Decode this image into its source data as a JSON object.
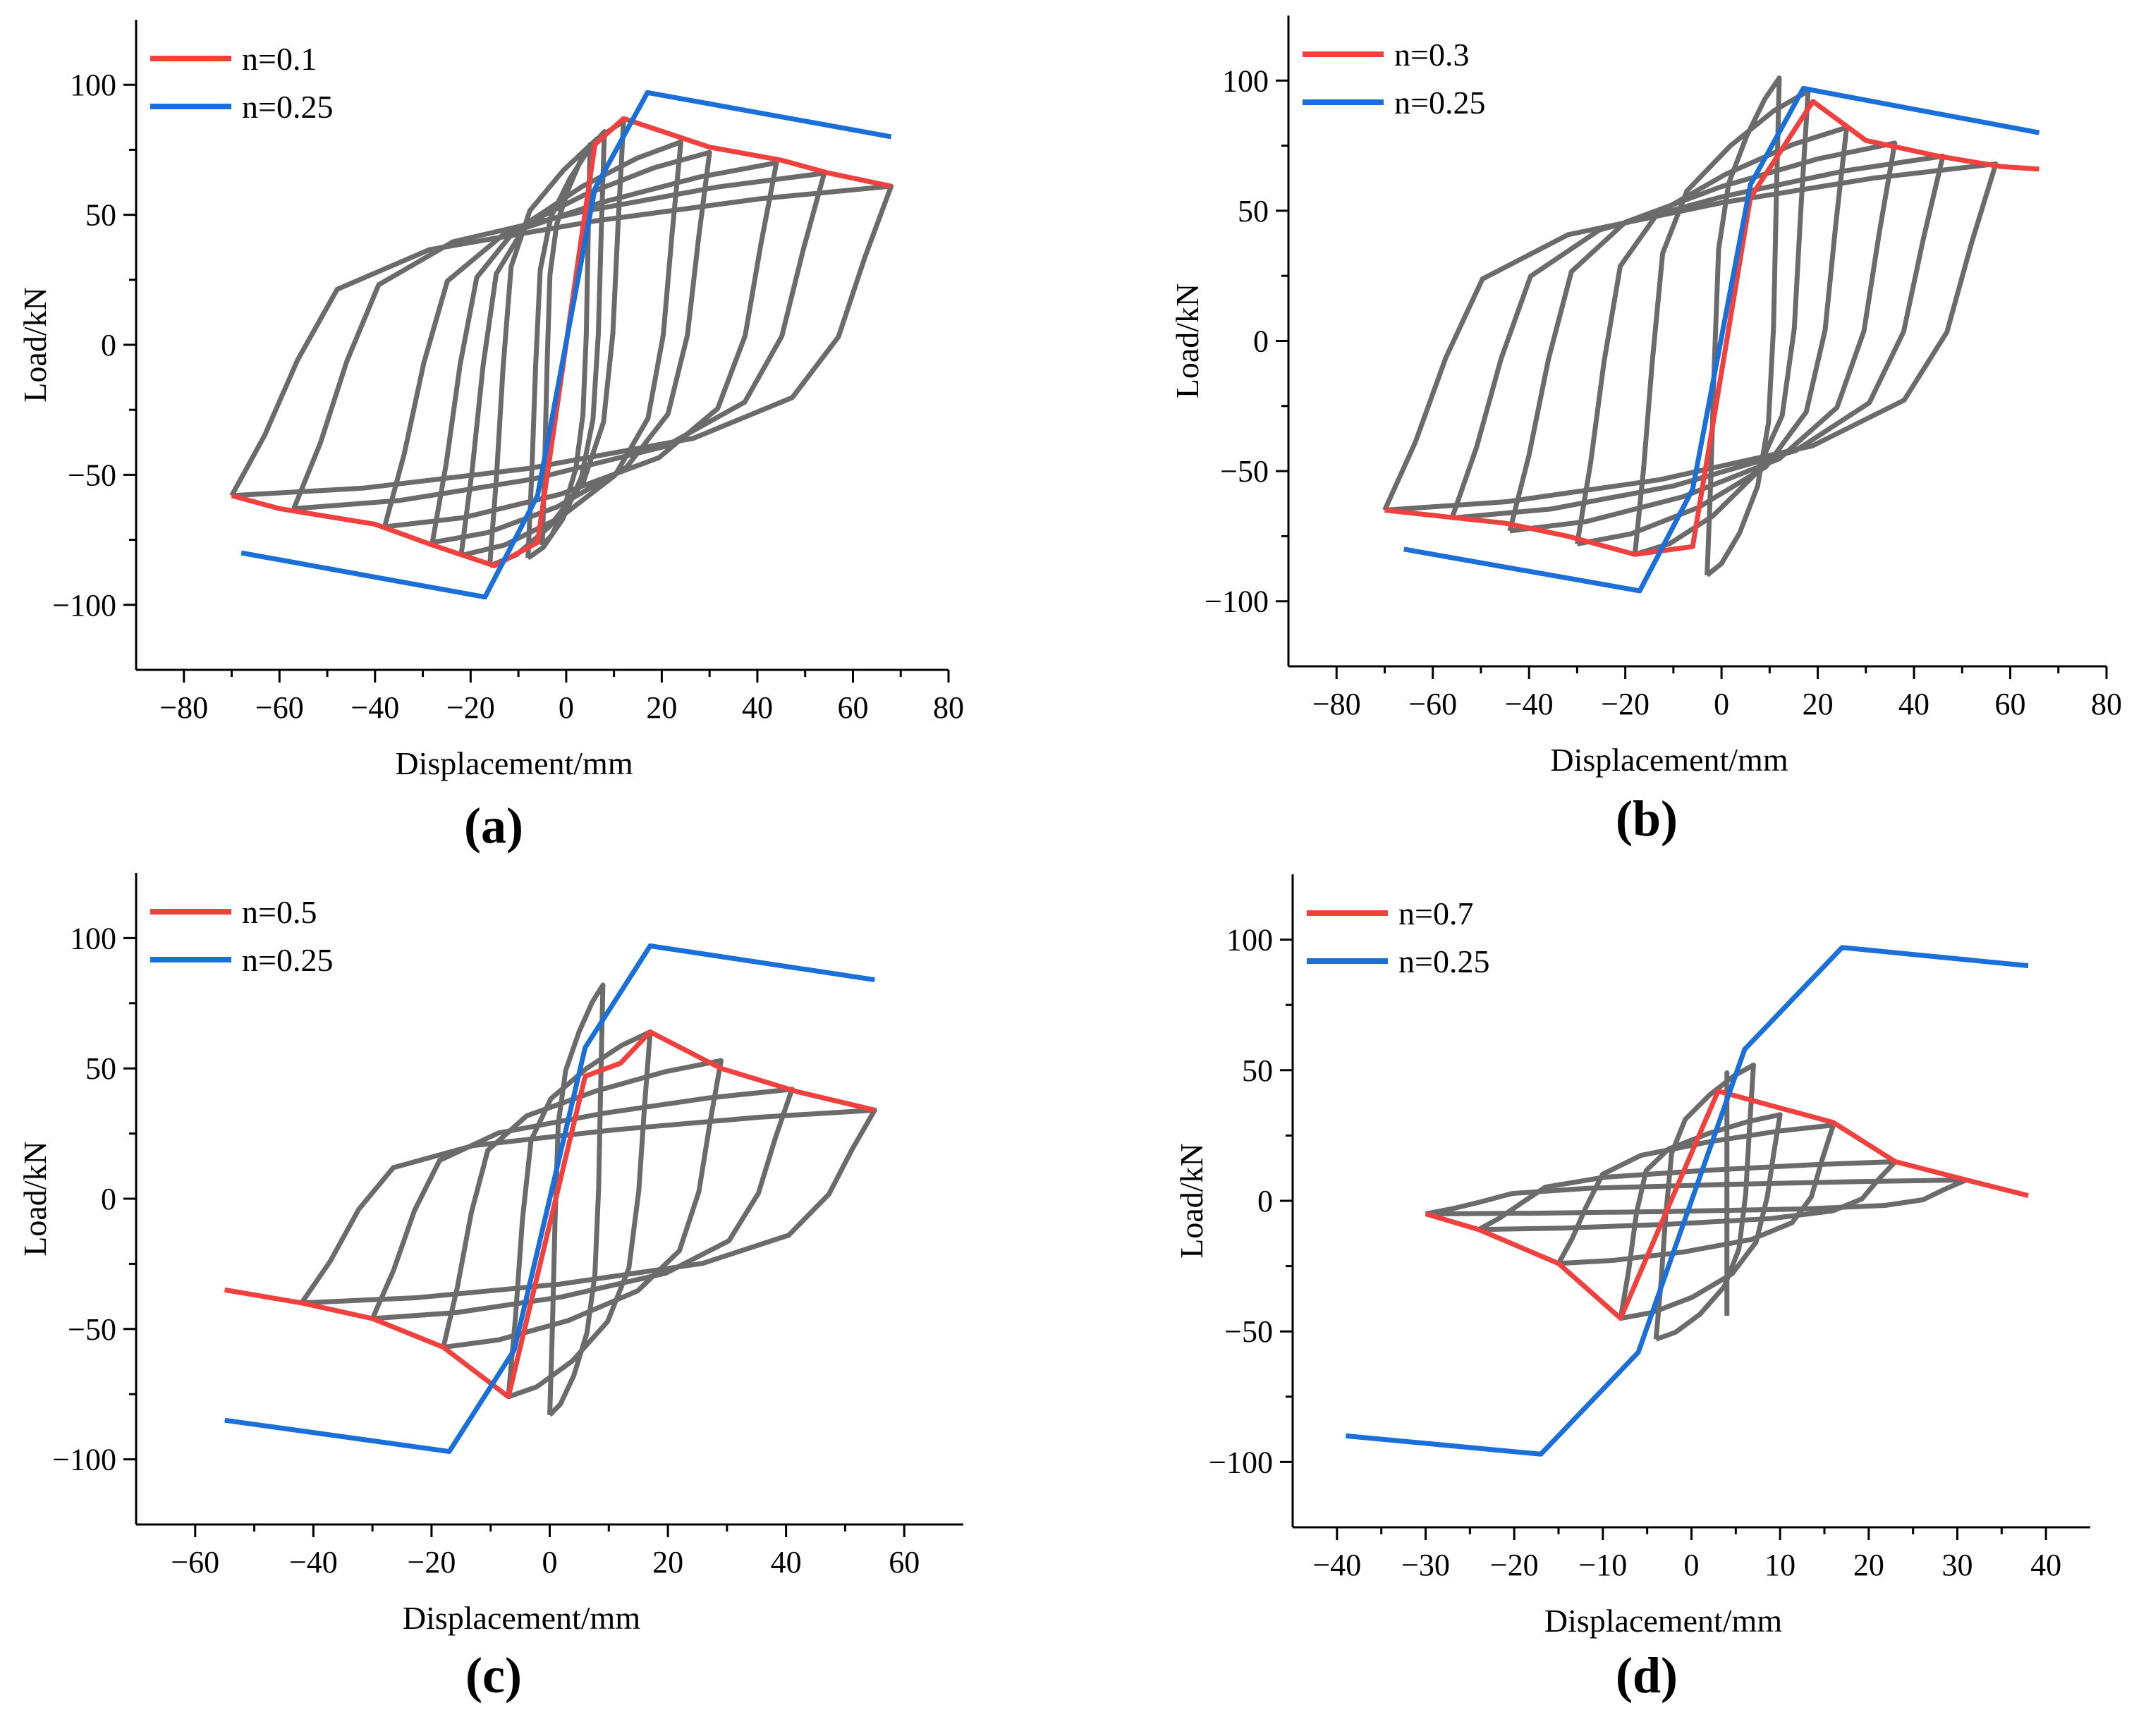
{
  "figure": {
    "colors": {
      "gray": "#6b6b6b",
      "red": "#f0413f",
      "blue": "#1a6fd8"
    },
    "panels": [
      "(a)",
      "(b)",
      "(c)",
      "(d)"
    ]
  },
  "chart_data": [
    {
      "id": "a",
      "panel_label": "(a)",
      "type": "line",
      "xlabel": "Displacement/mm",
      "ylabel": "Load/kN",
      "xlim": [
        -90,
        80
      ],
      "ylim": [
        -125,
        125
      ],
      "xticks": [
        -80,
        -60,
        -40,
        -20,
        0,
        20,
        40,
        60,
        80
      ],
      "yticks": [
        -100,
        -50,
        0,
        50,
        100
      ],
      "legend": [
        {
          "label": "n=0.1",
          "color": "#f0413f"
        },
        {
          "label": "n=0.25",
          "color": "#1a6fd8"
        }
      ],
      "series": [
        {
          "name": "n=0.1",
          "color": "#f0413f",
          "role": "envelope",
          "points": [
            [
              -70,
              -58
            ],
            [
              -60,
              -63
            ],
            [
              -40,
              -69
            ],
            [
              -28,
              -77
            ],
            [
              -15,
              -85
            ],
            [
              -6,
              -76
            ],
            [
              6,
              77
            ],
            [
              12,
              87
            ],
            [
              30,
              76
            ],
            [
              45,
              71
            ],
            [
              55,
              66
            ],
            [
              68,
              61
            ]
          ]
        },
        {
          "name": "n=0.25",
          "color": "#1a6fd8",
          "role": "envelope",
          "points": [
            [
              -68,
              -80
            ],
            [
              -17,
              -97
            ],
            [
              -6,
              -58
            ],
            [
              6,
              60
            ],
            [
              17,
              97
            ],
            [
              68,
              80
            ]
          ]
        }
      ],
      "hysteresis": {
        "name": "hysteresis",
        "color": "#6b6b6b",
        "peaks_positive": [
          [
            5,
            77
          ],
          [
            8,
            82
          ],
          [
            12,
            86
          ],
          [
            24,
            78
          ],
          [
            30,
            74
          ],
          [
            44,
            70
          ],
          [
            54,
            66
          ],
          [
            68,
            61
          ]
        ],
        "peaks_negative": [
          [
            -5,
            -77
          ],
          [
            -8,
            -82
          ],
          [
            -16,
            -85
          ],
          [
            -22,
            -81
          ],
          [
            -28,
            -76
          ],
          [
            -38,
            -70
          ],
          [
            -57,
            -63
          ],
          [
            -70,
            -58
          ]
        ]
      }
    },
    {
      "id": "b",
      "panel_label": "(b)",
      "type": "line",
      "xlabel": "Displacement/mm",
      "ylabel": "Load/kN",
      "xlim": [
        -90,
        80
      ],
      "ylim": [
        -125,
        125
      ],
      "xticks": [
        -80,
        -60,
        -40,
        -20,
        0,
        20,
        40,
        60,
        80
      ],
      "yticks": [
        -100,
        -50,
        0,
        50,
        100
      ],
      "legend": [
        {
          "label": "n=0.3",
          "color": "#f0413f"
        },
        {
          "label": "n=0.25",
          "color": "#1a6fd8"
        }
      ],
      "series": [
        {
          "name": "n=0.3",
          "color": "#f0413f",
          "role": "envelope",
          "points": [
            [
              -70,
              -65
            ],
            [
              -55,
              -68
            ],
            [
              -45,
              -70
            ],
            [
              -32,
              -75
            ],
            [
              -18,
              -82
            ],
            [
              -6,
              -79
            ],
            [
              6,
              55
            ],
            [
              19,
              92
            ],
            [
              30,
              77
            ],
            [
              45,
              71
            ],
            [
              58,
              67
            ],
            [
              66,
              66
            ]
          ]
        },
        {
          "name": "n=0.25",
          "color": "#1a6fd8",
          "role": "envelope",
          "points": [
            [
              -66,
              -80
            ],
            [
              -17,
              -96
            ],
            [
              -6,
              -57
            ],
            [
              6,
              60
            ],
            [
              17,
              97
            ],
            [
              66,
              80
            ]
          ]
        }
      ],
      "hysteresis": {
        "name": "hysteresis",
        "color": "#6b6b6b",
        "peaks_positive": [
          [
            12,
            101
          ],
          [
            18,
            96
          ],
          [
            26,
            82
          ],
          [
            36,
            76
          ],
          [
            46,
            71
          ],
          [
            57,
            68
          ],
          [
            66,
            66
          ]
        ],
        "peaks_negative": [
          [
            -3,
            -90
          ],
          [
            -18,
            -82
          ],
          [
            -30,
            -78
          ],
          [
            -44,
            -73
          ],
          [
            -56,
            -68
          ],
          [
            -70,
            -65
          ]
        ]
      }
    },
    {
      "id": "c",
      "panel_label": "(c)",
      "type": "line",
      "xlabel": "Displacement/mm",
      "ylabel": "Load/kN",
      "xlim": [
        -70,
        70
      ],
      "ylim": [
        -125,
        125
      ],
      "xticks": [
        -60,
        -40,
        -20,
        0,
        20,
        40,
        60
      ],
      "yticks": [
        -100,
        -50,
        0,
        50,
        100
      ],
      "legend": [
        {
          "label": "n=0.5",
          "color": "#f0413f"
        },
        {
          "label": "n=0.25",
          "color": "#1a6fd8"
        }
      ],
      "series": [
        {
          "name": "n=0.5",
          "color": "#f0413f",
          "role": "envelope",
          "points": [
            [
              -55,
              -35
            ],
            [
              -42,
              -40
            ],
            [
              -30,
              -46
            ],
            [
              -18,
              -57
            ],
            [
              -7,
              -76
            ],
            [
              6,
              47
            ],
            [
              12,
              52
            ],
            [
              17,
              64
            ],
            [
              29,
              50
            ],
            [
              42,
              41
            ],
            [
              55,
              34
            ]
          ]
        },
        {
          "name": "n=0.25",
          "color": "#1a6fd8",
          "role": "envelope",
          "points": [
            [
              -55,
              -85
            ],
            [
              -17,
              -97
            ],
            [
              -6,
              -58
            ],
            [
              6,
              58
            ],
            [
              17,
              97
            ],
            [
              55,
              84
            ]
          ]
        }
      ],
      "hysteresis": {
        "name": "hysteresis",
        "color": "#6b6b6b",
        "peaks_positive": [
          [
            9,
            82
          ],
          [
            17,
            64
          ],
          [
            29,
            53
          ],
          [
            41,
            42
          ],
          [
            55,
            34
          ]
        ],
        "peaks_negative": [
          [
            0,
            -83
          ],
          [
            -7,
            -76
          ],
          [
            -18,
            -57
          ],
          [
            -30,
            -46
          ],
          [
            -42,
            -40
          ],
          [
            -55,
            -35
          ]
        ]
      }
    },
    {
      "id": "d",
      "panel_label": "(d)",
      "type": "line",
      "xlabel": "Displacement/mm",
      "ylabel": "Load/kN",
      "xlim": [
        -45,
        45
      ],
      "ylim": [
        -125,
        125
      ],
      "xticks": [
        -40,
        -30,
        -20,
        -10,
        0,
        10,
        20,
        30,
        40
      ],
      "yticks": [
        -100,
        -50,
        0,
        50,
        100
      ],
      "legend": [
        {
          "label": "n=0.7",
          "color": "#f0413f"
        },
        {
          "label": "n=0.25",
          "color": "#1a6fd8"
        }
      ],
      "series": [
        {
          "name": "n=0.7",
          "color": "#f0413f",
          "role": "envelope",
          "points": [
            [
              -30,
              -5
            ],
            [
              -24,
              -11
            ],
            [
              -15,
              -24
            ],
            [
              -8,
              -45
            ],
            [
              3,
              42
            ],
            [
              16,
              30
            ],
            [
              23,
              15
            ],
            [
              31,
              8
            ],
            [
              38,
              2
            ]
          ]
        },
        {
          "name": "n=0.25",
          "color": "#1a6fd8",
          "role": "envelope",
          "points": [
            [
              -39,
              -90
            ],
            [
              -17,
              -97
            ],
            [
              -6,
              -58
            ],
            [
              6,
              58
            ],
            [
              17,
              97
            ],
            [
              38,
              90
            ]
          ]
        }
      ],
      "hysteresis": {
        "name": "hysteresis",
        "color": "#6b6b6b",
        "peaks_positive": [
          [
            7,
            52
          ],
          [
            4,
            49
          ],
          [
            10,
            33
          ],
          [
            16,
            29
          ],
          [
            23,
            15
          ],
          [
            31,
            8
          ],
          [
            38,
            2
          ]
        ],
        "peaks_negative": [
          [
            -4,
            -53
          ],
          [
            4,
            -44
          ],
          [
            -8,
            -45
          ],
          [
            -15,
            -24
          ],
          [
            -24,
            -11
          ],
          [
            -30,
            -5
          ]
        ]
      }
    }
  ]
}
